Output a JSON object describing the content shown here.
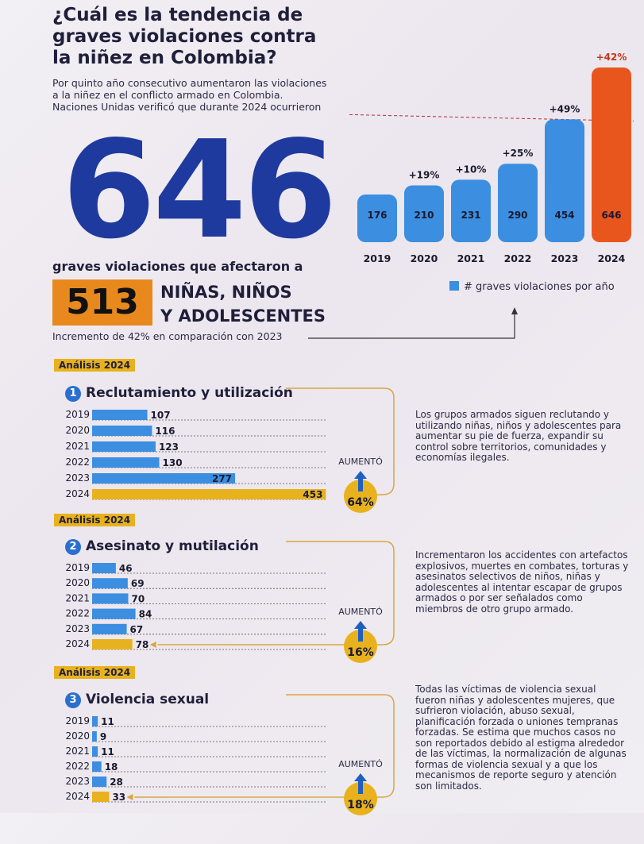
{
  "header": {
    "title": "¿Cuál es la tendencia de graves violaciones contra la niñez en Colombia?",
    "intro": "Por quinto año consecutivo aumentaron las violaciones a la niñez en el conflicto armado en Colombia. Naciones Unidas verificó que durante 2024 ocurrieron",
    "big_number": "646",
    "affected_text": "graves violaciones que afectaron a",
    "kids_number": "513",
    "kids_line1": "NIÑAS, NIÑOS",
    "kids_line2": "Y ADOLESCENTES",
    "increment_text": "Incremento de 42% en comparación con 2023"
  },
  "colors": {
    "bar_blue": "#3b8ee0",
    "bar_red": "#e8561e",
    "highlight_gold": "#e8b21e",
    "orange_box": "#e8891e",
    "title_blue": "#1f3a9e",
    "bracket": "#d9a642"
  },
  "chart_data": [
    {
      "type": "bar",
      "categories": [
        "2019",
        "2020",
        "2021",
        "2022",
        "2023",
        "2024"
      ],
      "values": [
        176,
        210,
        231,
        290,
        454,
        646
      ],
      "changes": [
        "",
        "+19%",
        "+10%",
        "+25%",
        "+49%",
        "+42%"
      ],
      "legend": "# graves violaciones por año",
      "legend_placement": "bottom-right"
    },
    {
      "type": "bar",
      "orientation": "horizontal",
      "tag": "Análisis 2024",
      "index": "1",
      "title": "Reclutamiento y utilización",
      "categories": [
        "2019",
        "2020",
        "2021",
        "2022",
        "2023",
        "2024"
      ],
      "values": [
        107,
        116,
        123,
        130,
        277,
        453
      ],
      "increase_label": "AUMENTÓ",
      "increase_value": "64%",
      "description": "Los grupos armados siguen reclutando y utilizando niñas, niños y adolescentes para aumentar su pie de fuerza, expandir su control sobre territorios, comunidades y economías ilegales."
    },
    {
      "type": "bar",
      "orientation": "horizontal",
      "tag": "Análisis 2024",
      "index": "2",
      "title": "Asesinato y mutilación",
      "categories": [
        "2019",
        "2020",
        "2021",
        "2022",
        "2023",
        "2024"
      ],
      "values": [
        46,
        69,
        70,
        84,
        67,
        78
      ],
      "increase_label": "AUMENTÓ",
      "increase_value": "16%",
      "description": "Incrementaron los accidentes con artefactos explosivos, muertes en combates, torturas y asesinatos selectivos de niños, niñas y adolescentes al intentar escapar de grupos armados o por ser señalados como miembros de otro grupo armado."
    },
    {
      "type": "bar",
      "orientation": "horizontal",
      "tag": "Análisis 2024",
      "index": "3",
      "title": "Violencia sexual",
      "categories": [
        "2019",
        "2020",
        "2021",
        "2022",
        "2023",
        "2024"
      ],
      "values": [
        11,
        9,
        11,
        18,
        28,
        33
      ],
      "increase_label": "AUMENTÓ",
      "increase_value": "18%",
      "description": "Todas las víctimas de violencia sexual fueron niñas y adolescentes mujeres, que sufrieron violación, abuso sexual, planificación forzada o uniones tempranas forzadas. Se estima que muchos casos no son reportados debido al estigma alrededor de las víctimas, la normalización de algunas formas de violencia sexual y a que los mecanismos de reporte seguro y atención son limitados."
    }
  ]
}
